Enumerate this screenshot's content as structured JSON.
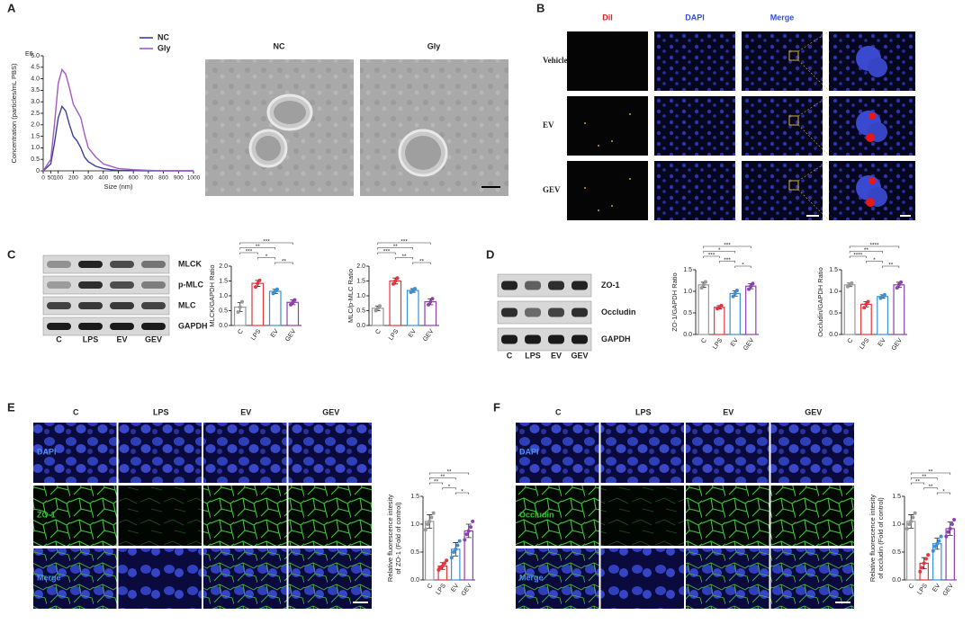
{
  "panels": {
    "a": "A",
    "b": "B",
    "c": "C",
    "d": "D",
    "e": "E",
    "f": "F"
  },
  "tem": {
    "labels": [
      "NC",
      "Gly"
    ]
  },
  "fluorescence": {
    "columns": [
      "DiI",
      "DAPI",
      "Merge"
    ],
    "rows": [
      "Vehicle",
      "EV",
      "GEV"
    ]
  },
  "blot_c": {
    "bands": [
      "MLCK",
      "p-MLC",
      "MLC",
      "GAPDH"
    ],
    "lanes": [
      "C",
      "LPS",
      "EV",
      "GEV"
    ]
  },
  "blot_d": {
    "bands": [
      "ZO-1",
      "Occludin",
      "GAPDH"
    ],
    "lanes": [
      "C",
      "LPS",
      "EV",
      "GEV"
    ]
  },
  "imaging_e": {
    "columns": [
      "C",
      "LPS",
      "EV",
      "GEV"
    ],
    "rows": [
      "DAPI",
      "ZO-1",
      "Merge"
    ]
  },
  "imaging_f": {
    "columns": [
      "C",
      "LPS",
      "EV",
      "GEV"
    ],
    "rows": [
      "DAPI",
      "Occludin",
      "Merge"
    ]
  },
  "chart_data": [
    {
      "type": "line",
      "x_label": "Size (nm)",
      "y_label": "Concentration (particles/mL PBS)",
      "y_unit": "E6",
      "legend": "upper right",
      "x": [
        0,
        50,
        75,
        100,
        125,
        150,
        175,
        200,
        225,
        250,
        275,
        300,
        350,
        400,
        450,
        500,
        600,
        700,
        800,
        1000
      ],
      "series": [
        {
          "name": "NC",
          "color": "#3a3f9c",
          "values": [
            0,
            0.3,
            1.2,
            2.3,
            2.8,
            2.6,
            2.0,
            1.5,
            1.3,
            1.0,
            0.6,
            0.4,
            0.2,
            0.1,
            0.05,
            0.02,
            0.01,
            0,
            0,
            0
          ]
        },
        {
          "name": "Gly",
          "color": "#a05bc0",
          "values": [
            0,
            0.5,
            2.0,
            3.8,
            4.4,
            4.2,
            3.6,
            2.9,
            2.6,
            2.3,
            1.6,
            1.0,
            0.6,
            0.3,
            0.2,
            0.1,
            0.05,
            0.02,
            0,
            0
          ]
        }
      ],
      "xlim": [
        0,
        1000
      ],
      "ylim": [
        0,
        5
      ],
      "xticks": [
        0,
        50,
        100,
        200,
        300,
        400,
        500,
        600,
        700,
        800,
        900,
        1000
      ],
      "yticks": [
        0,
        0.5,
        {
          "value": 1,
          "label": "1.0"
        },
        1.5,
        {
          "value": 2,
          "label": "2.0"
        },
        2.5,
        {
          "value": 3,
          "label": "3.0"
        },
        3.5,
        {
          "value": 4,
          "label": "4.0"
        },
        4.5,
        {
          "value": 5,
          "label": "5.0"
        }
      ]
    },
    {
      "type": "bar",
      "y_label": "MLCK/GAPDH Ratio",
      "categories": [
        "C",
        "LPS",
        "EV",
        "GEV"
      ],
      "colors": [
        "#999999",
        "#e8333a",
        "#3a8fd6",
        "#8e3fb0"
      ],
      "values": [
        0.62,
        1.42,
        1.15,
        0.78
      ],
      "errors": [
        0.15,
        0.1,
        0.07,
        0.08
      ],
      "points": [
        [
          0.45,
          0.62,
          0.8
        ],
        [
          1.3,
          1.42,
          1.52
        ],
        [
          1.08,
          1.15,
          1.22
        ],
        [
          0.7,
          0.78,
          0.86
        ]
      ],
      "ylim": [
        0,
        2
      ],
      "yticks": [
        {
          "value": 0,
          "label": "0.0"
        },
        0.5,
        {
          "value": 1,
          "label": "1.0"
        },
        1.5,
        {
          "value": 2,
          "label": "2.0"
        }
      ],
      "annotations": [
        {
          "between": [
            "C",
            "GEV"
          ],
          "label": "***"
        },
        {
          "between": [
            "C",
            "EV"
          ],
          "label": "**"
        },
        {
          "between": [
            "C",
            "LPS"
          ],
          "label": "***"
        },
        {
          "between": [
            "LPS",
            "EV"
          ],
          "label": "*"
        },
        {
          "between": [
            "EV",
            "GEV"
          ],
          "label": "**"
        }
      ]
    },
    {
      "type": "bar",
      "y_label": "MLC/p-MLC Ratio",
      "categories": [
        "C",
        "LPS",
        "EV",
        "GEV"
      ],
      "colors": [
        "#999999",
        "#e8333a",
        "#3a8fd6",
        "#8e3fb0"
      ],
      "values": [
        0.58,
        1.5,
        1.18,
        0.8
      ],
      "errors": [
        0.08,
        0.1,
        0.06,
        0.1
      ],
      "points": [
        [
          0.5,
          0.58,
          0.66
        ],
        [
          1.4,
          1.5,
          1.6
        ],
        [
          1.12,
          1.18,
          1.24
        ],
        [
          0.7,
          0.8,
          0.9
        ]
      ],
      "ylim": [
        0,
        2
      ],
      "yticks": [
        {
          "value": 0,
          "label": "0.0"
        },
        0.5,
        {
          "value": 1,
          "label": "1.0"
        },
        1.5,
        {
          "value": 2,
          "label": "2.0"
        }
      ],
      "annotations": [
        {
          "between": [
            "C",
            "GEV"
          ],
          "label": "***"
        },
        {
          "between": [
            "C",
            "EV"
          ],
          "label": "**"
        },
        {
          "between": [
            "C",
            "LPS"
          ],
          "label": "***"
        },
        {
          "between": [
            "LPS",
            "EV"
          ],
          "label": "**"
        },
        {
          "between": [
            "EV",
            "GEV"
          ],
          "label": "**"
        }
      ]
    },
    {
      "type": "bar",
      "y_label": "ZO-1/GAPDH Ratio",
      "categories": [
        "C",
        "LPS",
        "EV",
        "GEV"
      ],
      "colors": [
        "#999999",
        "#e8333a",
        "#3a8fd6",
        "#8e3fb0"
      ],
      "values": [
        1.15,
        0.63,
        0.95,
        1.12
      ],
      "errors": [
        0.06,
        0.04,
        0.06,
        0.06
      ],
      "points": [
        [
          1.08,
          1.15,
          1.22
        ],
        [
          0.6,
          0.63,
          0.67
        ],
        [
          0.88,
          0.95,
          1.02
        ],
        [
          1.05,
          1.12,
          1.18
        ]
      ],
      "ylim": [
        0,
        1.5
      ],
      "yticks": [
        {
          "value": 0,
          "label": "0.0"
        },
        0.5,
        {
          "value": 1,
          "label": "1.0"
        },
        1.5
      ],
      "annotations": [
        {
          "between": [
            "C",
            "GEV"
          ],
          "label": "***"
        },
        {
          "between": [
            "C",
            "EV"
          ],
          "label": "*"
        },
        {
          "between": [
            "C",
            "LPS"
          ],
          "label": "***"
        },
        {
          "between": [
            "LPS",
            "EV"
          ],
          "label": "***"
        },
        {
          "between": [
            "EV",
            "GEV"
          ],
          "label": "*"
        }
      ]
    },
    {
      "type": "bar",
      "y_label": "Occludin/GAPDH Ratio",
      "categories": [
        "C",
        "LPS",
        "EV",
        "GEV"
      ],
      "colors": [
        "#999999",
        "#e8333a",
        "#3a8fd6",
        "#8e3fb0"
      ],
      "values": [
        1.15,
        0.7,
        0.88,
        1.15
      ],
      "errors": [
        0.04,
        0.06,
        0.04,
        0.06
      ],
      "points": [
        [
          1.11,
          1.15,
          1.19
        ],
        [
          0.62,
          0.7,
          0.76
        ],
        [
          0.84,
          0.88,
          0.92
        ],
        [
          1.08,
          1.15,
          1.21
        ]
      ],
      "ylim": [
        0,
        1.5
      ],
      "yticks": [
        {
          "value": 0,
          "label": "0.0"
        },
        0.5,
        {
          "value": 1,
          "label": "1.0"
        },
        1.5
      ],
      "annotations": [
        {
          "between": [
            "C",
            "GEV"
          ],
          "label": "****"
        },
        {
          "between": [
            "C",
            "EV"
          ],
          "label": "**"
        },
        {
          "between": [
            "C",
            "LPS"
          ],
          "label": "****"
        },
        {
          "between": [
            "LPS",
            "EV"
          ],
          "label": "*"
        },
        {
          "between": [
            "EV",
            "GEV"
          ],
          "label": "**"
        }
      ]
    },
    {
      "type": "bar",
      "y_label": [
        "Relative fluorescence intesity",
        "of ZO-1 (Fold of control)"
      ],
      "categories": [
        "C",
        "LPS",
        "EV",
        "GEV"
      ],
      "colors": [
        "#999999",
        "#e8333a",
        "#3a8fd6",
        "#8e3fb0"
      ],
      "values": [
        1.05,
        0.25,
        0.55,
        0.88
      ],
      "errors": [
        0.12,
        0.06,
        0.12,
        0.12
      ],
      "points": [
        [
          0.9,
          1.0,
          1.05,
          1.12,
          1.2
        ],
        [
          0.18,
          0.22,
          0.25,
          0.3,
          0.35
        ],
        [
          0.4,
          0.5,
          0.55,
          0.62,
          0.7
        ],
        [
          0.72,
          0.82,
          0.88,
          0.95,
          1.05
        ]
      ],
      "ylim": [
        0,
        1.5
      ],
      "yticks": [
        {
          "value": 0,
          "label": "0.0"
        },
        0.5,
        {
          "value": 1,
          "label": "1.0"
        },
        1.5
      ],
      "annotations": [
        {
          "between": [
            "C",
            "GEV"
          ],
          "label": "**"
        },
        {
          "between": [
            "C",
            "EV"
          ],
          "label": "**"
        },
        {
          "between": [
            "C",
            "LPS"
          ],
          "label": "**"
        },
        {
          "between": [
            "LPS",
            "EV"
          ],
          "label": "*"
        },
        {
          "between": [
            "EV",
            "GEV"
          ],
          "label": "*"
        }
      ]
    },
    {
      "type": "bar",
      "y_label": [
        "Relative fluorescence intesity",
        "of occludin (Fold of control)"
      ],
      "categories": [
        "C",
        "LPS",
        "EV",
        "GEV"
      ],
      "colors": [
        "#999999",
        "#e8333a",
        "#3a8fd6",
        "#8e3fb0"
      ],
      "values": [
        1.05,
        0.3,
        0.65,
        0.92
      ],
      "errors": [
        0.12,
        0.1,
        0.1,
        0.12
      ],
      "points": [
        [
          0.92,
          1.0,
          1.05,
          1.12,
          1.2
        ],
        [
          0.15,
          0.22,
          0.3,
          0.38,
          0.45
        ],
        [
          0.52,
          0.6,
          0.65,
          0.7,
          0.78
        ],
        [
          0.78,
          0.86,
          0.92,
          1.0,
          1.08
        ]
      ],
      "ylim": [
        0,
        1.5
      ],
      "yticks": [
        {
          "value": 0,
          "label": "0.0"
        },
        0.5,
        {
          "value": 1,
          "label": "1.0"
        },
        1.5
      ],
      "annotations": [
        {
          "between": [
            "C",
            "GEV"
          ],
          "label": "**"
        },
        {
          "between": [
            "C",
            "EV"
          ],
          "label": "**"
        },
        {
          "between": [
            "C",
            "LPS"
          ],
          "label": "**"
        },
        {
          "between": [
            "LPS",
            "EV"
          ],
          "label": "**"
        },
        {
          "between": [
            "EV",
            "GEV"
          ],
          "label": "*"
        }
      ]
    }
  ]
}
